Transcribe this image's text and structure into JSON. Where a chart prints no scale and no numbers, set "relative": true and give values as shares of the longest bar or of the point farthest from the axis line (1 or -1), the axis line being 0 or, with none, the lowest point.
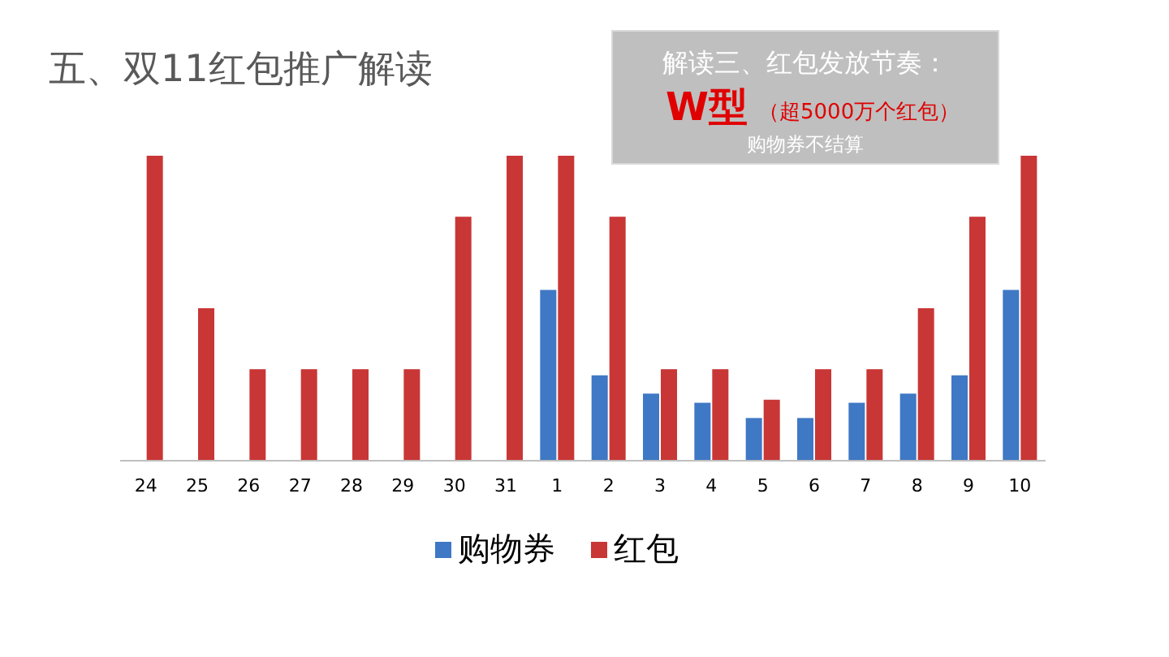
{
  "chart_data": {
    "type": "bar",
    "title": "五、双11红包推广解读",
    "relative": true,
    "legend": "bottom",
    "categories": [
      "24",
      "25",
      "26",
      "27",
      "28",
      "29",
      "30",
      "31",
      "1",
      "2",
      "3",
      "4",
      "5",
      "6",
      "7",
      "8",
      "9",
      "10"
    ],
    "series": [
      {
        "name": "购物券",
        "color": "#3f78c4",
        "values": [
          null,
          null,
          null,
          null,
          null,
          null,
          null,
          null,
          0.56,
          0.28,
          0.22,
          0.19,
          0.14,
          0.14,
          0.19,
          0.22,
          0.28,
          0.56
        ]
      },
      {
        "name": "红包",
        "color": "#c93636",
        "values": [
          1.0,
          0.5,
          0.3,
          0.3,
          0.3,
          0.3,
          0.8,
          1.0,
          1.0,
          0.8,
          0.3,
          0.3,
          0.2,
          0.3,
          0.3,
          0.5,
          0.8,
          1.0
        ]
      }
    ],
    "annotations": [
      "解读三、红包发放节奏：",
      "W型",
      "（超5000万个红包）",
      "购物券不结算"
    ]
  }
}
